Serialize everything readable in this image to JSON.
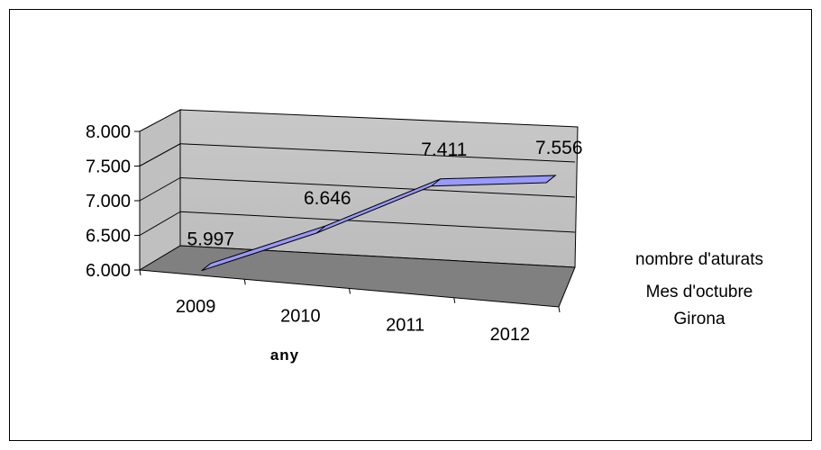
{
  "chart_data": {
    "type": "line",
    "title": "",
    "xlabel": "any",
    "ylabel": "",
    "categories": [
      "2009",
      "2010",
      "2011",
      "2012"
    ],
    "series": [
      {
        "name": "nombre d'aturats Mes d'octubre Girona",
        "values": [
          5997,
          6646,
          7411,
          7556
        ]
      }
    ],
    "y_ticks": [
      "6.000",
      "6.500",
      "7.000",
      "7.500",
      "8.000"
    ],
    "data_labels": [
      "5.997",
      "6.646",
      "7.411",
      "7.556"
    ],
    "ylim": [
      6000,
      8000
    ],
    "grid": true,
    "legend_position": "right",
    "legend_lines": [
      "nombre d'aturats",
      "Mes d'octubre",
      "Girona"
    ],
    "style": "3d-line",
    "colors": {
      "series": "#9999ff",
      "wall": "#c0c0c0",
      "floor": "#808080"
    }
  }
}
